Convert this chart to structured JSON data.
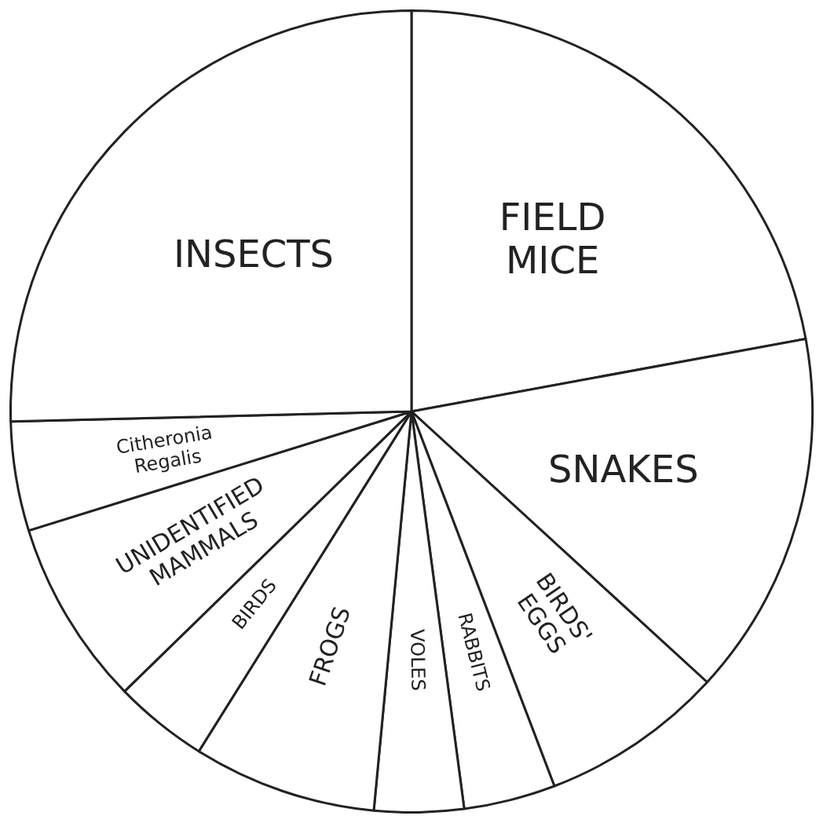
{
  "chart_data": {
    "type": "pie",
    "categories": [
      "FIELD MICE",
      "SNAKES",
      "BIRDS' EGGS",
      "RABBITS",
      "VOLES",
      "FROGS",
      "BIRDS",
      "UNIDENTIFIED MAMMALS",
      "Citheronia Regalis",
      "INSECTS"
    ],
    "values": [
      22.1,
      14.7,
      7.4,
      3.7,
      3.6,
      7.4,
      3.8,
      7.5,
      4.4,
      25.4
    ],
    "colors": [
      "#ffffff",
      "#ffffff",
      "#ffffff",
      "#ffffff",
      "#ffffff",
      "#ffffff",
      "#ffffff",
      "#ffffff",
      "#ffffff",
      "#ffffff"
    ],
    "legend": false
  }
}
